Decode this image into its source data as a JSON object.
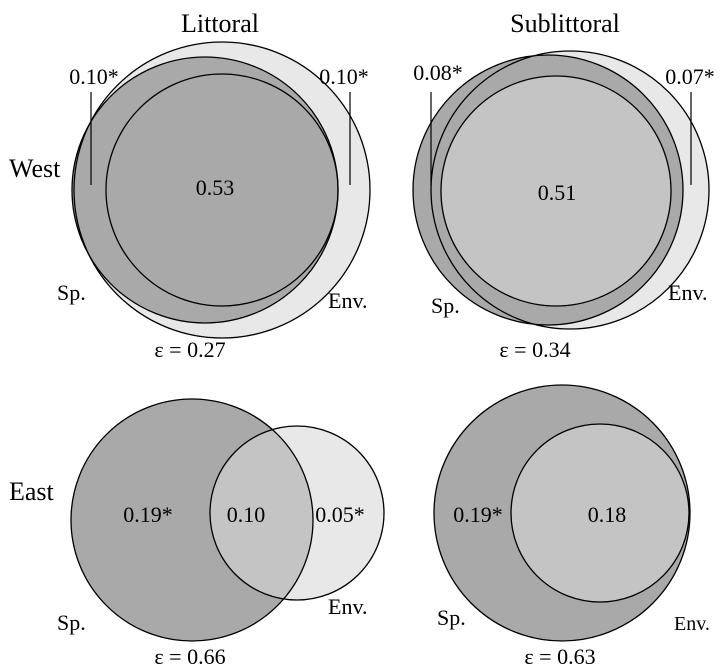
{
  "columns": {
    "left": "Littoral",
    "right": "Sublittoral"
  },
  "rows": {
    "top": "West",
    "bottom": "East"
  },
  "colors": {
    "species_only": "#a9a9a9",
    "environment_only": "#e8e8e8",
    "overlap_west_littoral": "#a9a9a9",
    "overlap_light": "#c4c4c4",
    "stroke": "#000000"
  },
  "panels": {
    "west_littoral": {
      "species_label": "Sp.",
      "env_label": "Env.",
      "species_only": "0.10*",
      "env_only": "0.10*",
      "shared": "0.53",
      "residual": "ε = 0.27"
    },
    "west_sublittoral": {
      "species_label": "Sp.",
      "env_label": "Env.",
      "species_only": "0.08*",
      "env_only": "0.07*",
      "shared": "0.51",
      "residual": "ε = 0.34"
    },
    "east_littoral": {
      "species_label": "Sp.",
      "env_label": "Env.",
      "species_only": "0.19*",
      "env_only": "0.05*",
      "shared": "0.10",
      "residual": "ε = 0.66"
    },
    "east_sublittoral": {
      "species_label": "Sp.",
      "env_label": "Env.",
      "species_only": "0.19*",
      "shared": "0.18",
      "residual": "ε = 0.63"
    }
  }
}
